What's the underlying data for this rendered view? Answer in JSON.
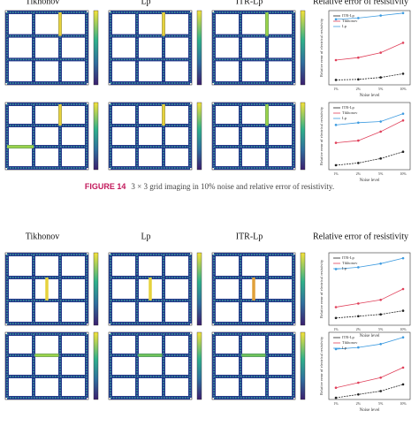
{
  "figure_a": {
    "panel_titles": [
      "Tikhonov",
      "Lp",
      "ITR-Lp",
      "Relative error of resistivity"
    ],
    "line_charts": [
      {
        "type": "line",
        "x_label": "Noise level",
        "y_label": "Relative error of electrical resistivity",
        "categories": [
          "1%",
          "2%",
          "5%",
          "10%"
        ],
        "ylim": [
          0,
          0.3
        ],
        "series": [
          {
            "name": "ITR-Lp",
            "color": "#222222",
            "values": [
              0.02,
              0.022,
              0.03,
              0.045
            ]
          },
          {
            "name": "Tikhonov",
            "color": "#e0405a",
            "values": [
              0.1,
              0.11,
              0.13,
              0.17
            ]
          },
          {
            "name": "Lp",
            "color": "#3d9be0",
            "values": [
              0.265,
              0.27,
              0.28,
              0.29
            ]
          }
        ]
      },
      {
        "type": "line",
        "x_label": "Noise level",
        "y_label": "Relative error of electrical resistivity",
        "categories": [
          "1%",
          "2%",
          "5%",
          "10%"
        ],
        "ylim": [
          0,
          0.3
        ],
        "series": [
          {
            "name": "ITR-Lp",
            "color": "#222222",
            "values": [
              0.02,
              0.03,
              0.05,
              0.08
            ]
          },
          {
            "name": "Tikhonov",
            "color": "#e0405a",
            "values": [
              0.12,
              0.13,
              0.17,
              0.22
            ]
          },
          {
            "name": "Lp",
            "color": "#3d9be0",
            "values": [
              0.2,
              0.21,
              0.215,
              0.25
            ]
          }
        ]
      }
    ]
  },
  "caption": {
    "label": "FIGURE 14",
    "text": "3 × 3 grid imaging in 10% noise and relative error of resistivity."
  },
  "figure_b": {
    "panel_titles": [
      "Tikhonov",
      "Lp",
      "ITR-Lp",
      "Relative error of resistivity"
    ],
    "line_charts": [
      {
        "type": "line",
        "x_label": "Noise level",
        "y_label": "Relative error of electrical resistivity",
        "categories": [
          "1%",
          "2%",
          "5%",
          "10%"
        ],
        "ylim": [
          0,
          0.4
        ],
        "series": [
          {
            "name": "ITR-Lp",
            "color": "#222222",
            "values": [
              0.04,
              0.05,
              0.06,
              0.08
            ]
          },
          {
            "name": "Tikhonov",
            "color": "#e0405a",
            "values": [
              0.1,
              0.12,
              0.14,
              0.2
            ]
          },
          {
            "name": "Lp",
            "color": "#3d9be0",
            "values": [
              0.31,
              0.32,
              0.34,
              0.37
            ]
          }
        ]
      },
      {
        "type": "line",
        "x_label": "Noise level",
        "y_label": "Relative error of electrical resistivity",
        "categories": [
          "1%",
          "2%",
          "5%",
          "10%"
        ],
        "ylim": [
          0,
          0.4
        ],
        "series": [
          {
            "name": "ITR-Lp",
            "color": "#222222",
            "values": [
              0.01,
              0.03,
              0.05,
              0.09
            ]
          },
          {
            "name": "Tikhonov",
            "color": "#e0405a",
            "values": [
              0.07,
              0.1,
              0.13,
              0.19
            ]
          },
          {
            "name": "Lp",
            "color": "#3d9be0",
            "values": [
              0.3,
              0.31,
              0.33,
              0.37
            ]
          }
        ]
      }
    ]
  }
}
